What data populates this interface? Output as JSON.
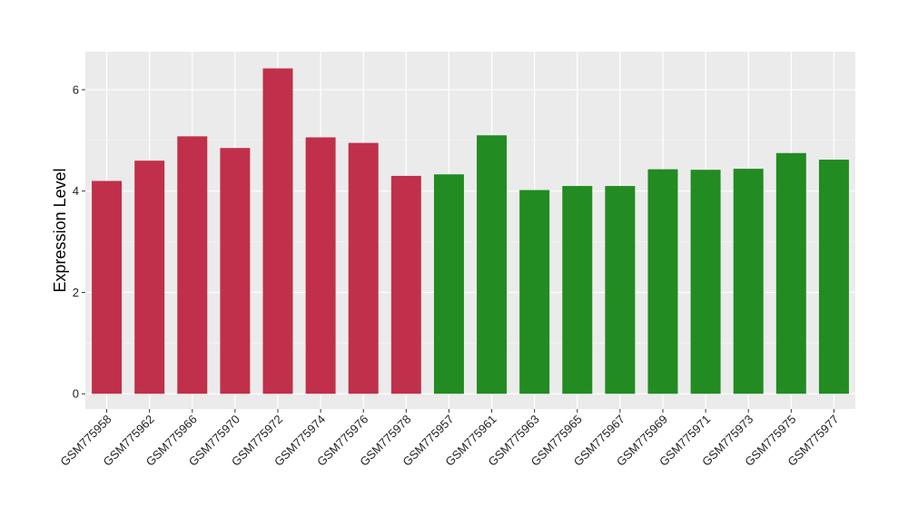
{
  "chart_data": {
    "type": "bar",
    "ylabel": "Expression Level",
    "xlabel": "",
    "ylim": [
      -0.3,
      6.75
    ],
    "yticks": [
      0,
      2,
      4,
      6
    ],
    "ytick_labels": [
      "0",
      "2",
      "4",
      "6"
    ],
    "grid": true,
    "background": "#EBEBEB",
    "categories": [
      "GSM775958",
      "GSM775962",
      "GSM775966",
      "GSM775970",
      "GSM775972",
      "GSM775974",
      "GSM775976",
      "GSM775978",
      "GSM775957",
      "GSM775961",
      "GSM775963",
      "GSM775965",
      "GSM775967",
      "GSM775969",
      "GSM775971",
      "GSM775973",
      "GSM775975",
      "GSM775977"
    ],
    "values": [
      4.2,
      4.6,
      5.08,
      4.85,
      6.42,
      5.06,
      4.95,
      4.3,
      4.33,
      5.1,
      4.02,
      4.1,
      4.1,
      4.43,
      4.42,
      4.44,
      4.75,
      4.62
    ],
    "colors": [
      "#C0304A",
      "#C0304A",
      "#C0304A",
      "#C0304A",
      "#C0304A",
      "#C0304A",
      "#C0304A",
      "#C0304A",
      "#228B22",
      "#228B22",
      "#228B22",
      "#228B22",
      "#228B22",
      "#228B22",
      "#228B22",
      "#228B22",
      "#228B22",
      "#228B22"
    ]
  }
}
